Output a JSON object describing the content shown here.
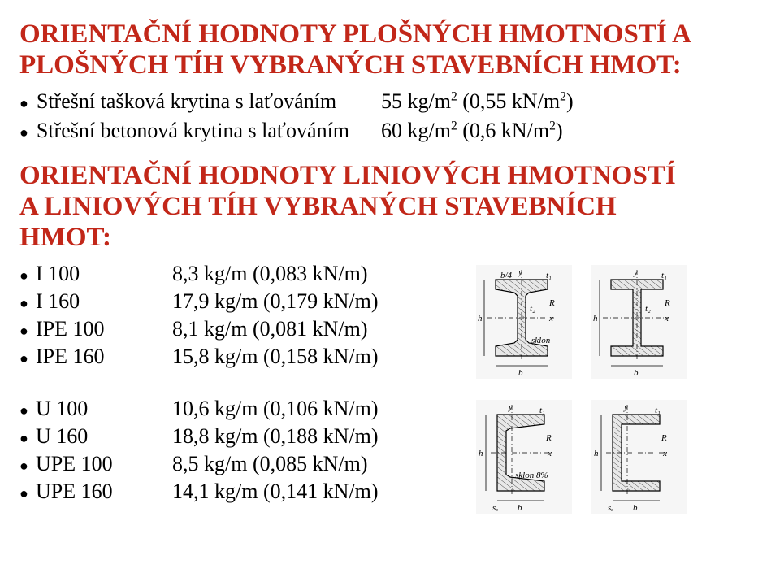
{
  "colors": {
    "title": "#c22719",
    "text": "#000000",
    "background": "#ffffff",
    "diagram_stroke": "#000000",
    "diagram_fill": "#e8e8e8",
    "diagram_bg": "#f6f6f6"
  },
  "heading1": {
    "line1": "ORIENTAČNÍ HODNOTY PLOŠNÝCH HMOTNOSTÍ A",
    "line2": "PLOŠNÝCH TÍH VYBRANÝCH STAVEBNÍCH HMOT:",
    "fontsize": 33,
    "color": "#c22719"
  },
  "area_items": [
    {
      "label": "Střešní tašková krytina s laťováním",
      "value_html": "55 kg/m<sup>2</sup> (0,55 kN/m<sup>2</sup>)"
    },
    {
      "label": "Střešní betonová krytina s laťováním",
      "value_html": "60 kg/m<sup>2</sup> (0,6 kN/m<sup>2</sup>)"
    }
  ],
  "heading2": {
    "line1": "ORIENTAČNÍ HODNOTY LINIOVÝCH HMOTNOSTÍ",
    "line2": "A LINIOVÝCH TÍH VYBRANÝCH STAVEBNÍCH",
    "line3": "HMOT:",
    "fontsize": 33,
    "color": "#c22719"
  },
  "i_profiles": [
    {
      "name": "I 100",
      "value": "8,3 kg/m (0,083 kN/m)"
    },
    {
      "name": "I 160",
      "value": "17,9 kg/m (0,179 kN/m)"
    },
    {
      "name": "IPE 100",
      "value": "8,1 kg/m (0,081 kN/m)"
    },
    {
      "name": "IPE 160",
      "value": "15,8 kg/m (0,158 kN/m)"
    }
  ],
  "u_profiles": [
    {
      "name": "U 100",
      "value": "10,6 kg/m (0,106 kN/m)"
    },
    {
      "name": "U 160",
      "value": "18,8 kg/m (0,188 kN/m)"
    },
    {
      "name": "UPE 100",
      "value": "8,5 kg/m (0,085 kN/m)"
    },
    {
      "name": "UPE 160",
      "value": "14,1 kg/m (0,141 kN/m)"
    }
  ],
  "diagram_labels": {
    "b": "b",
    "h": "h",
    "x": "x",
    "y": "y",
    "t1": "t₁",
    "t2": "t₂",
    "R": "R",
    "sx": "sₓ",
    "sklon": "sklon",
    "sklon8": "sklon 8%",
    "b4": "b/4"
  },
  "diagram_style": {
    "width": 118,
    "height": 140,
    "font_size": 11
  }
}
